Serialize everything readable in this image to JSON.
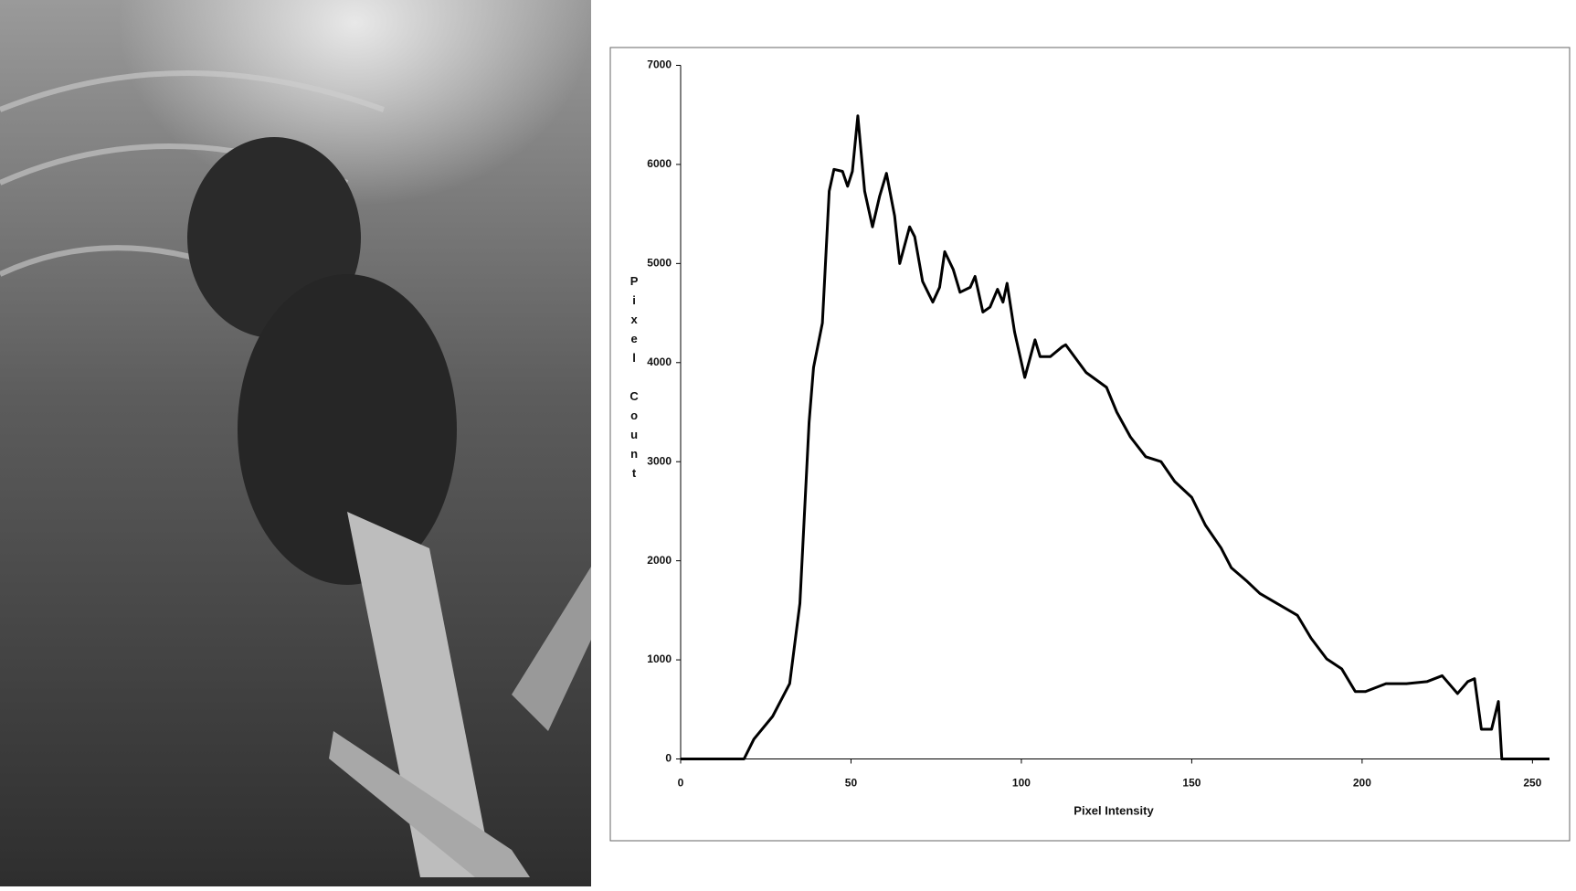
{
  "chart_data": {
    "type": "line",
    "x_label": "Pixel Intensity",
    "y_label": "Pixel Count",
    "x": [
      0,
      18.6,
      21.5,
      27,
      32,
      35,
      37.7,
      39,
      41.6,
      43.6,
      45,
      47.5,
      49,
      50.4,
      52,
      54,
      56.3,
      58.4,
      60.4,
      62.8,
      64.3,
      67.2,
      68.7,
      71,
      74,
      76,
      77.5,
      80,
      82,
      85,
      86.4,
      88.7,
      90.8,
      93,
      94.6,
      95.8,
      98,
      101,
      104,
      105.5,
      108.5,
      112,
      113,
      119,
      125,
      128,
      132,
      136.5,
      141,
      145,
      150,
      154,
      158.6,
      161.6,
      166,
      170,
      175,
      181,
      185,
      189.6,
      194,
      198,
      201,
      207,
      213,
      219,
      223.5,
      228,
      231,
      233,
      235,
      238,
      240,
      241,
      255
    ],
    "values": [
      0,
      0,
      200,
      430,
      760,
      1570,
      3400,
      3950,
      4400,
      5730,
      5950,
      5930,
      5780,
      5930,
      6490,
      5730,
      5370,
      5680,
      5910,
      5480,
      5000,
      5370,
      5270,
      4820,
      4610,
      4760,
      5120,
      4940,
      4710,
      4760,
      4870,
      4510,
      4560,
      4740,
      4610,
      4800,
      4310,
      3850,
      4230,
      4060,
      4060,
      4160,
      4180,
      3900,
      3750,
      3500,
      3250,
      3050,
      3000,
      2800,
      2640,
      2360,
      2130,
      1930,
      1800,
      1670,
      1570,
      1450,
      1220,
      1010,
      910,
      680,
      680,
      760,
      760,
      780,
      840,
      660,
      780,
      810,
      300,
      300,
      580,
      0,
      0
    ],
    "color": "#000000",
    "xlim": [
      0,
      255
    ],
    "xticks": [
      0,
      50,
      100,
      150,
      200,
      250
    ],
    "ylim": [
      0,
      7000
    ],
    "yticks": [
      0,
      1000,
      2000,
      3000,
      4000,
      5000,
      6000,
      7000
    ]
  }
}
